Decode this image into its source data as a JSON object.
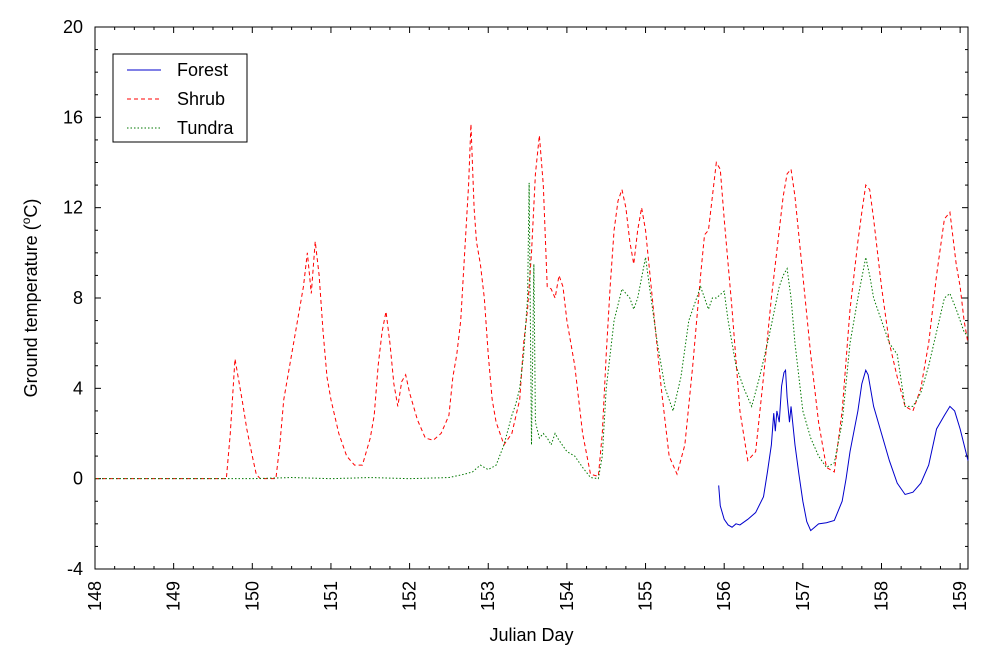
{
  "chart_data": {
    "type": "line",
    "xlabel": "Julian Day",
    "ylabel": "Ground temperature (",
    "ylabel_sup": "o",
    "ylabel_unit": "C)",
    "xlim": [
      148,
      159.1
    ],
    "ylim": [
      -4,
      20
    ],
    "xticks": [
      148,
      149,
      150,
      151,
      152,
      153,
      154,
      155,
      156,
      157,
      158,
      159
    ],
    "yticks": [
      -4,
      0,
      4,
      8,
      12,
      16,
      20
    ],
    "grid": false,
    "legend_position": "top-left",
    "series": [
      {
        "name": "Forest",
        "color": "#0000cc",
        "dash": "solid",
        "points": [
          [
            155.93,
            -0.3
          ],
          [
            155.95,
            -1.2
          ],
          [
            156.0,
            -1.8
          ],
          [
            156.05,
            -2.05
          ],
          [
            156.1,
            -2.15
          ],
          [
            156.15,
            -2.0
          ],
          [
            156.2,
            -2.05
          ],
          [
            156.3,
            -1.8
          ],
          [
            156.4,
            -1.5
          ],
          [
            156.5,
            -0.8
          ],
          [
            156.55,
            0.3
          ],
          [
            156.6,
            1.5
          ],
          [
            156.63,
            2.9
          ],
          [
            156.65,
            2.1
          ],
          [
            156.67,
            3.0
          ],
          [
            156.7,
            2.5
          ],
          [
            156.73,
            4.1
          ],
          [
            156.76,
            4.7
          ],
          [
            156.78,
            4.8
          ],
          [
            156.8,
            3.6
          ],
          [
            156.83,
            2.5
          ],
          [
            156.85,
            3.2
          ],
          [
            156.9,
            1.5
          ],
          [
            156.95,
            0.2
          ],
          [
            157.0,
            -1.0
          ],
          [
            157.05,
            -1.9
          ],
          [
            157.1,
            -2.3
          ],
          [
            157.15,
            -2.15
          ],
          [
            157.2,
            -2.0
          ],
          [
            157.3,
            -1.95
          ],
          [
            157.4,
            -1.85
          ],
          [
            157.5,
            -1.0
          ],
          [
            157.55,
            0.0
          ],
          [
            157.6,
            1.2
          ],
          [
            157.7,
            3.0
          ],
          [
            157.75,
            4.2
          ],
          [
            157.8,
            4.8
          ],
          [
            157.83,
            4.6
          ],
          [
            157.9,
            3.2
          ],
          [
            158.0,
            2.0
          ],
          [
            158.1,
            0.8
          ],
          [
            158.2,
            -0.2
          ],
          [
            158.3,
            -0.7
          ],
          [
            158.4,
            -0.6
          ],
          [
            158.5,
            -0.2
          ],
          [
            158.6,
            0.6
          ],
          [
            158.7,
            2.2
          ],
          [
            158.8,
            2.8
          ],
          [
            158.87,
            3.2
          ],
          [
            158.93,
            3.0
          ],
          [
            159.0,
            2.2
          ],
          [
            159.05,
            1.5
          ],
          [
            159.1,
            0.8
          ]
        ]
      },
      {
        "name": "Shrub",
        "color": "#ff0000",
        "dash": "4,3",
        "points": [
          [
            148.0,
            0.0
          ],
          [
            149.67,
            0.0
          ],
          [
            149.72,
            2.0
          ],
          [
            149.78,
            5.3
          ],
          [
            149.82,
            4.5
          ],
          [
            149.87,
            3.5
          ],
          [
            149.93,
            2.2
          ],
          [
            150.0,
            1.0
          ],
          [
            150.05,
            0.2
          ],
          [
            150.1,
            0.0
          ],
          [
            150.3,
            0.0
          ],
          [
            150.35,
            1.5
          ],
          [
            150.4,
            3.5
          ],
          [
            150.45,
            4.5
          ],
          [
            150.5,
            5.5
          ],
          [
            150.55,
            6.5
          ],
          [
            150.6,
            7.5
          ],
          [
            150.65,
            8.5
          ],
          [
            150.7,
            10.0
          ],
          [
            150.75,
            8.2
          ],
          [
            150.8,
            10.5
          ],
          [
            150.85,
            9.0
          ],
          [
            150.9,
            6.5
          ],
          [
            150.95,
            4.5
          ],
          [
            151.0,
            3.5
          ],
          [
            151.1,
            2.0
          ],
          [
            151.2,
            1.0
          ],
          [
            151.3,
            0.6
          ],
          [
            151.4,
            0.6
          ],
          [
            151.5,
            1.8
          ],
          [
            151.55,
            2.8
          ],
          [
            151.6,
            5.0
          ],
          [
            151.65,
            6.5
          ],
          [
            151.7,
            7.4
          ],
          [
            151.75,
            6.0
          ],
          [
            151.8,
            4.2
          ],
          [
            151.85,
            3.2
          ],
          [
            151.9,
            4.3
          ],
          [
            151.95,
            4.6
          ],
          [
            152.0,
            3.8
          ],
          [
            152.1,
            2.6
          ],
          [
            152.2,
            1.8
          ],
          [
            152.3,
            1.7
          ],
          [
            152.4,
            2.0
          ],
          [
            152.5,
            2.8
          ],
          [
            152.55,
            4.5
          ],
          [
            152.6,
            5.5
          ],
          [
            152.65,
            7.0
          ],
          [
            152.7,
            10.0
          ],
          [
            152.75,
            13.0
          ],
          [
            152.78,
            15.7
          ],
          [
            152.82,
            12.0
          ],
          [
            152.85,
            10.5
          ],
          [
            152.9,
            9.5
          ],
          [
            152.95,
            8.0
          ],
          [
            153.0,
            5.5
          ],
          [
            153.05,
            3.5
          ],
          [
            153.1,
            2.5
          ],
          [
            153.2,
            1.5
          ],
          [
            153.3,
            2.0
          ],
          [
            153.4,
            3.5
          ],
          [
            153.45,
            6.0
          ],
          [
            153.5,
            7.5
          ],
          [
            153.55,
            10.0
          ],
          [
            153.6,
            13.5
          ],
          [
            153.65,
            15.2
          ],
          [
            153.7,
            13.0
          ],
          [
            153.75,
            8.5
          ],
          [
            153.8,
            8.4
          ],
          [
            153.85,
            8.0
          ],
          [
            153.9,
            9.0
          ],
          [
            153.95,
            8.5
          ],
          [
            154.0,
            7.0
          ],
          [
            154.1,
            5.0
          ],
          [
            154.2,
            2.0
          ],
          [
            154.3,
            0.2
          ],
          [
            154.4,
            0.1
          ],
          [
            154.45,
            2.0
          ],
          [
            154.5,
            5.5
          ],
          [
            154.55,
            8.5
          ],
          [
            154.6,
            11.0
          ],
          [
            154.65,
            12.3
          ],
          [
            154.7,
            12.8
          ],
          [
            154.75,
            12.0
          ],
          [
            154.8,
            10.5
          ],
          [
            154.85,
            9.5
          ],
          [
            154.9,
            11.0
          ],
          [
            154.95,
            12.0
          ],
          [
            155.0,
            11.0
          ],
          [
            155.1,
            7.5
          ],
          [
            155.2,
            4.0
          ],
          [
            155.3,
            1.0
          ],
          [
            155.4,
            0.2
          ],
          [
            155.5,
            1.5
          ],
          [
            155.6,
            5.0
          ],
          [
            155.7,
            9.0
          ],
          [
            155.75,
            10.8
          ],
          [
            155.8,
            11.0
          ],
          [
            155.85,
            12.5
          ],
          [
            155.9,
            14.0
          ],
          [
            155.95,
            13.7
          ],
          [
            156.0,
            11.5
          ],
          [
            156.1,
            7.5
          ],
          [
            156.2,
            3.0
          ],
          [
            156.3,
            0.8
          ],
          [
            156.4,
            1.2
          ],
          [
            156.5,
            4.5
          ],
          [
            156.6,
            8.0
          ],
          [
            156.7,
            11.0
          ],
          [
            156.75,
            12.5
          ],
          [
            156.8,
            13.5
          ],
          [
            156.85,
            13.7
          ],
          [
            156.9,
            12.5
          ],
          [
            157.0,
            9.0
          ],
          [
            157.1,
            5.5
          ],
          [
            157.2,
            2.5
          ],
          [
            157.3,
            0.5
          ],
          [
            157.4,
            0.3
          ],
          [
            157.5,
            3.0
          ],
          [
            157.6,
            7.5
          ],
          [
            157.7,
            10.5
          ],
          [
            157.75,
            11.8
          ],
          [
            157.8,
            13.0
          ],
          [
            157.85,
            12.8
          ],
          [
            157.9,
            11.5
          ],
          [
            158.0,
            8.5
          ],
          [
            158.1,
            6.0
          ],
          [
            158.2,
            4.5
          ],
          [
            158.3,
            3.2
          ],
          [
            158.4,
            3.0
          ],
          [
            158.5,
            4.0
          ],
          [
            158.6,
            6.0
          ],
          [
            158.7,
            9.0
          ],
          [
            158.8,
            11.5
          ],
          [
            158.87,
            11.8
          ],
          [
            158.95,
            9.5
          ],
          [
            159.0,
            8.5
          ],
          [
            159.05,
            7.0
          ],
          [
            159.1,
            6.0
          ]
        ]
      },
      {
        "name": "Tundra",
        "color": "#007700",
        "dash": "1.5,2",
        "points": [
          [
            148.0,
            0.0
          ],
          [
            149.9,
            0.0
          ],
          [
            150.0,
            0.0
          ],
          [
            150.5,
            0.05
          ],
          [
            151.0,
            0.0
          ],
          [
            151.5,
            0.05
          ],
          [
            152.0,
            0.0
          ],
          [
            152.5,
            0.05
          ],
          [
            152.7,
            0.2
          ],
          [
            152.8,
            0.3
          ],
          [
            152.9,
            0.6
          ],
          [
            153.0,
            0.4
          ],
          [
            153.1,
            0.6
          ],
          [
            153.2,
            1.5
          ],
          [
            153.3,
            2.8
          ],
          [
            153.35,
            3.3
          ],
          [
            153.4,
            4.0
          ],
          [
            153.45,
            5.5
          ],
          [
            153.5,
            8.0
          ],
          [
            153.52,
            13.1
          ],
          [
            153.55,
            1.5
          ],
          [
            153.58,
            9.5
          ],
          [
            153.6,
            2.5
          ],
          [
            153.65,
            1.8
          ],
          [
            153.7,
            2.0
          ],
          [
            153.75,
            1.8
          ],
          [
            153.8,
            1.5
          ],
          [
            153.85,
            2.0
          ],
          [
            153.9,
            1.7
          ],
          [
            154.0,
            1.2
          ],
          [
            154.1,
            1.0
          ],
          [
            154.2,
            0.5
          ],
          [
            154.3,
            0.05
          ],
          [
            154.4,
            0.0
          ],
          [
            154.45,
            1.0
          ],
          [
            154.5,
            4.0
          ],
          [
            154.6,
            7.0
          ],
          [
            154.7,
            8.4
          ],
          [
            154.8,
            8.0
          ],
          [
            154.85,
            7.5
          ],
          [
            154.9,
            8.0
          ],
          [
            155.0,
            9.8
          ],
          [
            155.05,
            8.5
          ],
          [
            155.15,
            6.0
          ],
          [
            155.25,
            4.0
          ],
          [
            155.35,
            3.0
          ],
          [
            155.45,
            4.5
          ],
          [
            155.55,
            7.0
          ],
          [
            155.65,
            8.0
          ],
          [
            155.7,
            8.5
          ],
          [
            155.8,
            7.5
          ],
          [
            155.85,
            8.0
          ],
          [
            155.9,
            8.0
          ],
          [
            156.0,
            8.3
          ],
          [
            156.05,
            7.0
          ],
          [
            156.15,
            5.0
          ],
          [
            156.25,
            4.0
          ],
          [
            156.35,
            3.2
          ],
          [
            156.45,
            4.5
          ],
          [
            156.55,
            6.0
          ],
          [
            156.6,
            6.8
          ],
          [
            156.7,
            8.5
          ],
          [
            156.75,
            9.0
          ],
          [
            156.8,
            9.3
          ],
          [
            156.85,
            8.0
          ],
          [
            156.9,
            6.0
          ],
          [
            157.0,
            3.0
          ],
          [
            157.1,
            1.8
          ],
          [
            157.2,
            1.0
          ],
          [
            157.3,
            0.5
          ],
          [
            157.4,
            0.7
          ],
          [
            157.5,
            2.5
          ],
          [
            157.6,
            6.0
          ],
          [
            157.7,
            8.0
          ],
          [
            157.8,
            9.8
          ],
          [
            157.85,
            9.0
          ],
          [
            157.9,
            8.0
          ],
          [
            158.0,
            7.0
          ],
          [
            158.1,
            6.0
          ],
          [
            158.2,
            5.5
          ],
          [
            158.3,
            3.2
          ],
          [
            158.4,
            3.2
          ],
          [
            158.5,
            3.8
          ],
          [
            158.6,
            5.0
          ],
          [
            158.7,
            6.5
          ],
          [
            158.8,
            8.0
          ],
          [
            158.87,
            8.2
          ],
          [
            158.95,
            7.5
          ],
          [
            159.0,
            7.0
          ],
          [
            159.05,
            6.5
          ],
          [
            159.1,
            6.3
          ]
        ]
      }
    ]
  }
}
